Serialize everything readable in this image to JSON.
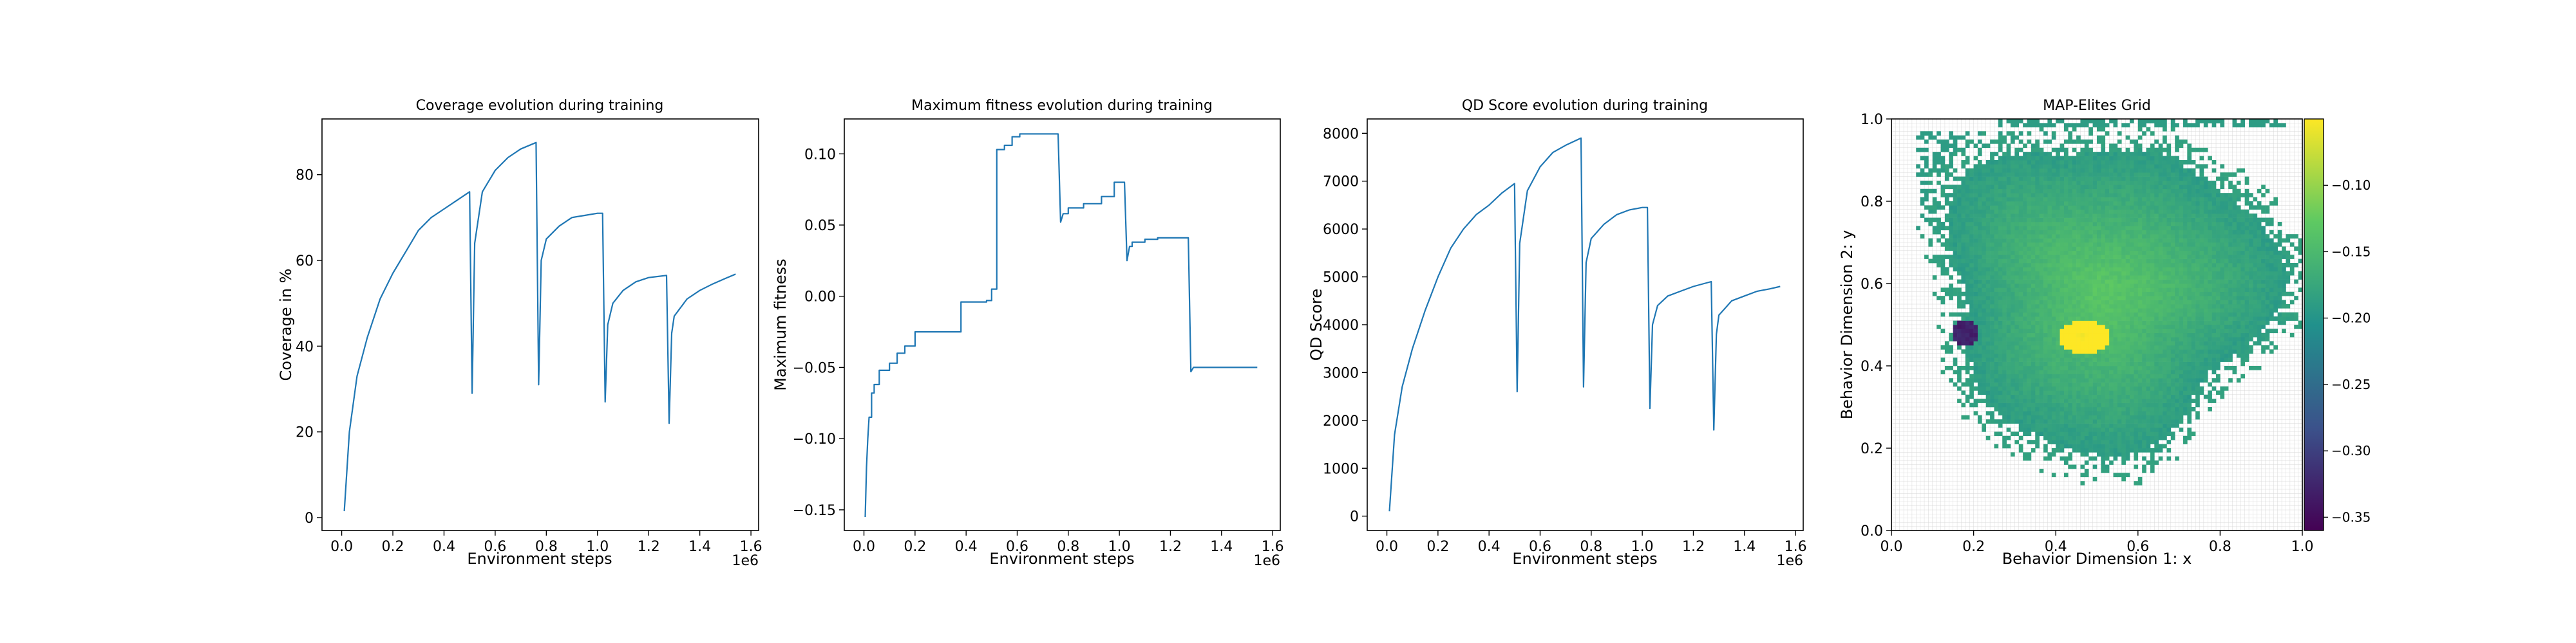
{
  "chart_data": [
    {
      "type": "line",
      "title": "Coverage evolution during training",
      "xlabel": "Environment steps",
      "ylabel": "Coverage in %",
      "x_offset_label": "1e6",
      "xlim": [
        -0.077,
        1.63
      ],
      "ylim": [
        -3,
        93
      ],
      "xticks": [
        0.0,
        0.2,
        0.4,
        0.6,
        0.8,
        1.0,
        1.2,
        1.4,
        1.6
      ],
      "xtick_labels": [
        "0.0",
        "0.2",
        "0.4",
        "0.6",
        "0.8",
        "1.0",
        "1.2",
        "1.4",
        "1.6"
      ],
      "yticks": [
        0,
        20,
        40,
        60,
        80
      ],
      "ytick_labels": [
        "0",
        "20",
        "40",
        "60",
        "80"
      ],
      "color": "#1f77b4",
      "x": [
        0.01,
        0.03,
        0.06,
        0.1,
        0.15,
        0.2,
        0.25,
        0.3,
        0.35,
        0.4,
        0.45,
        0.5,
        0.51,
        0.52,
        0.55,
        0.6,
        0.65,
        0.7,
        0.76,
        0.77,
        0.78,
        0.8,
        0.85,
        0.9,
        0.95,
        1.0,
        1.02,
        1.03,
        1.04,
        1.06,
        1.1,
        1.15,
        1.2,
        1.27,
        1.28,
        1.29,
        1.3,
        1.35,
        1.4,
        1.45,
        1.5,
        1.54
      ],
      "y": [
        1.5,
        20,
        33,
        42,
        51,
        57,
        62,
        67,
        70,
        72,
        74,
        76,
        29,
        64,
        76,
        81,
        84,
        86,
        87.5,
        31,
        60,
        65,
        68,
        70,
        70.5,
        71,
        71,
        27,
        45,
        50,
        53,
        55,
        56,
        56.5,
        22,
        43,
        47,
        51,
        53,
        54.5,
        55.8,
        56.8
      ]
    },
    {
      "type": "line",
      "title": "Maximum fitness evolution during training",
      "xlabel": "Environment steps",
      "ylabel": "Maximum fitness",
      "x_offset_label": "1e6",
      "xlim": [
        -0.077,
        1.63
      ],
      "ylim": [
        -0.1645,
        0.1245
      ],
      "xticks": [
        0.0,
        0.2,
        0.4,
        0.6,
        0.8,
        1.0,
        1.2,
        1.4,
        1.6
      ],
      "xtick_labels": [
        "0.0",
        "0.2",
        "0.4",
        "0.6",
        "0.8",
        "1.0",
        "1.2",
        "1.4",
        "1.6"
      ],
      "yticks": [
        -0.15,
        -0.1,
        -0.05,
        0.0,
        0.05,
        0.1
      ],
      "ytick_labels": [
        "−0.15",
        "−0.10",
        "−0.05",
        "0.00",
        "0.05",
        "0.10"
      ],
      "color": "#1f77b4",
      "x": [
        0.005,
        0.01,
        0.015,
        0.02,
        0.03,
        0.03,
        0.04,
        0.04,
        0.06,
        0.06,
        0.1,
        0.1,
        0.13,
        0.13,
        0.16,
        0.16,
        0.2,
        0.2,
        0.38,
        0.38,
        0.48,
        0.48,
        0.5,
        0.5,
        0.52,
        0.52,
        0.55,
        0.55,
        0.58,
        0.58,
        0.61,
        0.61,
        0.76,
        0.77,
        0.78,
        0.8,
        0.8,
        0.86,
        0.86,
        0.93,
        0.93,
        0.98,
        0.98,
        1.02,
        1.03,
        1.04,
        1.05,
        1.05,
        1.1,
        1.1,
        1.15,
        1.15,
        1.27,
        1.28,
        1.29,
        1.3,
        1.54
      ],
      "y": [
        -0.155,
        -0.12,
        -0.1,
        -0.085,
        -0.085,
        -0.068,
        -0.068,
        -0.062,
        -0.062,
        -0.052,
        -0.052,
        -0.047,
        -0.047,
        -0.04,
        -0.04,
        -0.035,
        -0.035,
        -0.025,
        -0.025,
        -0.004,
        -0.004,
        -0.003,
        -0.003,
        0.005,
        0.005,
        0.103,
        0.103,
        0.106,
        0.106,
        0.112,
        0.112,
        0.114,
        0.114,
        0.052,
        0.058,
        0.058,
        0.062,
        0.062,
        0.065,
        0.065,
        0.07,
        0.07,
        0.08,
        0.08,
        0.025,
        0.035,
        0.035,
        0.038,
        0.038,
        0.04,
        0.04,
        0.041,
        0.041,
        -0.053,
        -0.05,
        -0.05,
        -0.05
      ]
    },
    {
      "type": "line",
      "title": "QD Score evolution during training",
      "xlabel": "Environment steps",
      "ylabel": "QD Score",
      "x_offset_label": "1e6",
      "xlim": [
        -0.077,
        1.63
      ],
      "ylim": [
        -300,
        8300
      ],
      "xticks": [
        0.0,
        0.2,
        0.4,
        0.6,
        0.8,
        1.0,
        1.2,
        1.4,
        1.6
      ],
      "xtick_labels": [
        "0.0",
        "0.2",
        "0.4",
        "0.6",
        "0.8",
        "1.0",
        "1.2",
        "1.4",
        "1.6"
      ],
      "yticks": [
        0,
        1000,
        2000,
        3000,
        4000,
        5000,
        6000,
        7000,
        8000
      ],
      "ytick_labels": [
        "0",
        "1000",
        "2000",
        "3000",
        "4000",
        "5000",
        "6000",
        "7000",
        "8000"
      ],
      "color": "#1f77b4",
      "x": [
        0.01,
        0.03,
        0.06,
        0.1,
        0.15,
        0.2,
        0.25,
        0.3,
        0.35,
        0.4,
        0.45,
        0.5,
        0.51,
        0.52,
        0.55,
        0.6,
        0.65,
        0.7,
        0.76,
        0.77,
        0.78,
        0.8,
        0.85,
        0.9,
        0.95,
        1.0,
        1.02,
        1.03,
        1.04,
        1.06,
        1.1,
        1.15,
        1.2,
        1.27,
        1.28,
        1.29,
        1.3,
        1.35,
        1.4,
        1.45,
        1.5,
        1.54
      ],
      "y": [
        100,
        1700,
        2700,
        3500,
        4300,
        5000,
        5600,
        6000,
        6300,
        6500,
        6750,
        6950,
        2600,
        5700,
        6800,
        7300,
        7600,
        7750,
        7900,
        2700,
        5300,
        5800,
        6100,
        6300,
        6400,
        6450,
        6450,
        2250,
        4000,
        4400,
        4600,
        4700,
        4800,
        4900,
        1800,
        3800,
        4200,
        4500,
        4600,
        4700,
        4750,
        4800
      ]
    },
    {
      "type": "heatmap",
      "title": "MAP-Elites Grid",
      "xlabel": "Behavior Dimension 1: x",
      "ylabel": "Behavior Dimension 2: y",
      "xlim": [
        0.0,
        1.0
      ],
      "ylim": [
        0.0,
        1.0
      ],
      "xticks": [
        0.0,
        0.2,
        0.4,
        0.6,
        0.8,
        1.0
      ],
      "xtick_labels": [
        "0.0",
        "0.2",
        "0.4",
        "0.6",
        "0.8",
        "1.0"
      ],
      "yticks": [
        0.0,
        0.2,
        0.4,
        0.6,
        0.8,
        1.0
      ],
      "ytick_labels": [
        "0.0",
        "0.2",
        "0.4",
        "0.6",
        "0.8",
        "1.0"
      ],
      "grid": true,
      "grid_resolution": 100,
      "colormap": "viridis",
      "colorbar_range": [
        -0.36,
        -0.05
      ],
      "colorbar_ticks": [
        -0.35,
        -0.3,
        -0.25,
        -0.2,
        -0.15,
        -0.1
      ],
      "colorbar_tick_labels": [
        "−0.35",
        "−0.30",
        "−0.25",
        "−0.20",
        "−0.15",
        "−0.10"
      ],
      "regions": {
        "main_blob": {
          "center": [
            0.52,
            0.58
          ],
          "radius": 0.45,
          "outer_value": -0.2,
          "inner_value": -0.13
        },
        "top_strip": {
          "x_range": [
            0.26,
            0.96
          ],
          "y_range": [
            0.985,
            1.0
          ],
          "value": -0.19
        },
        "bright_feature": {
          "center": [
            0.47,
            0.47
          ],
          "value": -0.06
        },
        "dark_cluster": {
          "center": [
            0.18,
            0.48
          ],
          "value": -0.34
        }
      }
    }
  ]
}
